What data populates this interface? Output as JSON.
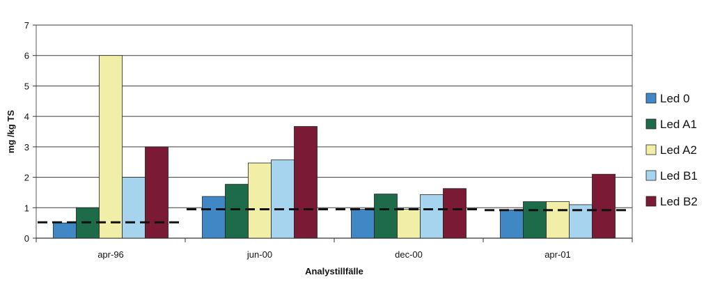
{
  "chart_data": {
    "type": "bar",
    "categories": [
      "apr-96",
      "jun-00",
      "dec-00",
      "apr-01"
    ],
    "series": [
      {
        "name": "Led 0",
        "values": [
          0.5,
          1.37,
          0.95,
          0.93
        ]
      },
      {
        "name": "Led A1",
        "values": [
          1.0,
          1.77,
          1.45,
          1.2
        ]
      },
      {
        "name": "Led A2",
        "values": [
          6.0,
          2.47,
          0.95,
          1.2
        ]
      },
      {
        "name": "Led B1",
        "values": [
          2.0,
          2.57,
          1.43,
          1.1
        ]
      },
      {
        "name": "Led B2",
        "values": [
          3.0,
          3.67,
          1.63,
          2.1
        ]
      }
    ],
    "reference_lines": [
      0.52,
      0.95,
      0.95,
      0.92
    ],
    "xlabel": "Analystillfälle",
    "ylabel": "mg /kg TS",
    "ylim": [
      0,
      7
    ],
    "yticks": [
      0,
      1,
      2,
      3,
      4,
      5,
      6,
      7
    ],
    "grid": true,
    "legend_position": "right",
    "colors": {
      "Led 0": "#3f88c5",
      "Led A1": "#1e6b4a",
      "Led A2": "#f1eea8",
      "Led B1": "#a6d4ef",
      "Led B2": "#7a1a35"
    }
  }
}
